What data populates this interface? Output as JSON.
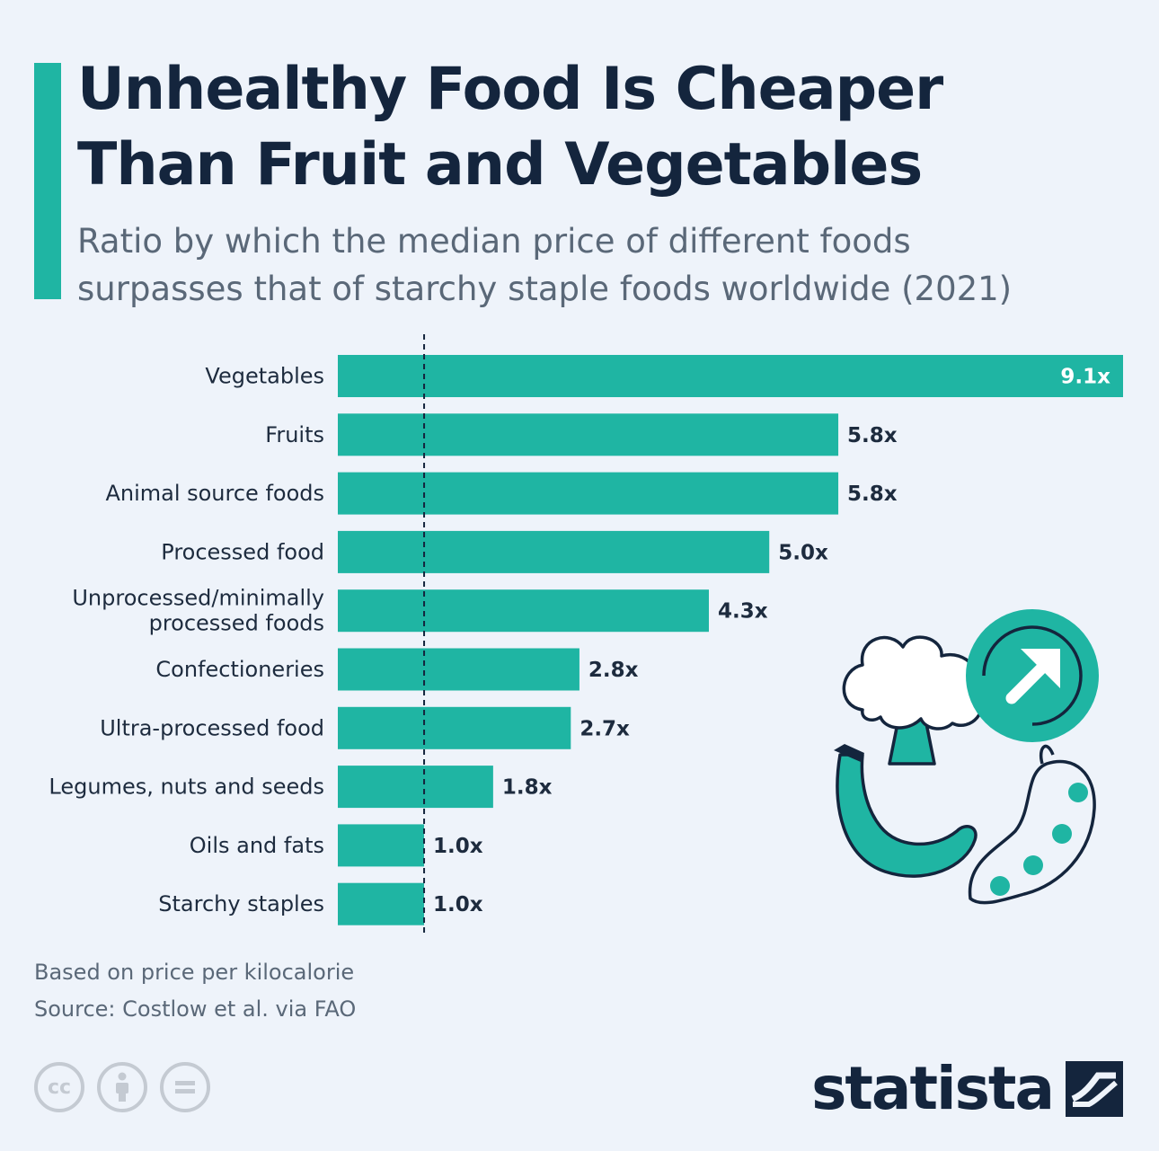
{
  "header": {
    "title_line1": "Unhealthy Food Is Cheaper",
    "title_line2": "Than Fruit and Vegetables",
    "subtitle_line1": "Ratio by which the median price of different foods",
    "subtitle_line2": "surpasses that of starchy staple foods worldwide (2021)"
  },
  "colors": {
    "bar": "#1fb5a3",
    "title": "#14253d",
    "text": "#1d2b3e",
    "muted": "#5a6878",
    "background": "#eef3fa"
  },
  "chart_data": {
    "type": "bar",
    "orientation": "horizontal",
    "title": "Unhealthy Food Is Cheaper Than Fruit and Vegetables",
    "xlabel": "",
    "ylabel": "",
    "xlim": [
      0,
      9.1
    ],
    "reference_line": 1.0,
    "grid": false,
    "categories": [
      [
        "Vegetables"
      ],
      [
        "Fruits"
      ],
      [
        "Animal source foods"
      ],
      [
        "Processed food"
      ],
      [
        "Unprocessed/minimally",
        "processed foods"
      ],
      [
        "Confectioneries"
      ],
      [
        "Ultra-processed food"
      ],
      [
        "Legumes, nuts and seeds"
      ],
      [
        "Oils and fats"
      ],
      [
        "Starchy staples"
      ]
    ],
    "values": [
      9.1,
      5.8,
      5.8,
      5.0,
      4.3,
      2.8,
      2.7,
      1.8,
      1.0,
      1.0
    ],
    "value_labels": [
      "9.1x",
      "5.8x",
      "5.8x",
      "5.0x",
      "4.3x",
      "2.8x",
      "2.7x",
      "1.8x",
      "1.0x",
      "1.0x"
    ]
  },
  "footer": {
    "note": "Based on price per kilocalorie",
    "source": "Source: Costlow et al. via FAO",
    "license_icons": [
      "cc",
      "by",
      "nd"
    ],
    "brand": "statista"
  },
  "illustration": {
    "icons": [
      "broccoli-icon",
      "banana-icon",
      "pea-pod-icon",
      "arrow-up-right-icon"
    ]
  }
}
